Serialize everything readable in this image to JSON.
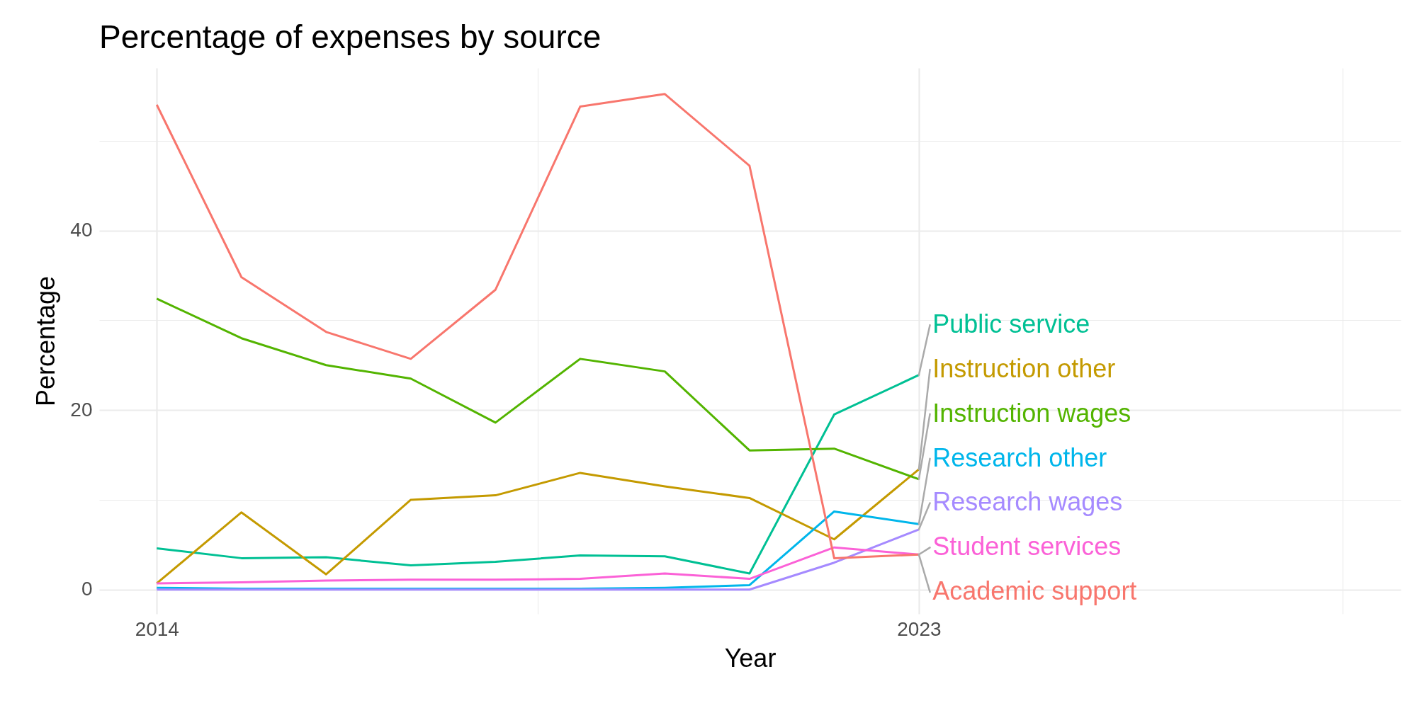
{
  "chart_data": {
    "type": "line",
    "title": "Percentage of expenses by source",
    "xlabel": "Year",
    "ylabel": "Percentage",
    "x": [
      2014,
      2015,
      2016,
      2017,
      2018,
      2019,
      2020,
      2021,
      2022,
      2023
    ],
    "xlim": [
      2013.32,
      2028.69
    ],
    "xticks": [
      2014,
      {
        "value": 2018.5,
        "label": null
      },
      2023,
      {
        "value": 2028,
        "label": null
      }
    ],
    "ylim": [
      -2.7,
      58.1
    ],
    "yticks": [
      0,
      {
        "value": 10,
        "label": null
      },
      20,
      {
        "value": 30,
        "label": null
      },
      40,
      {
        "value": 50,
        "label": null
      }
    ],
    "grid": true,
    "legend": false,
    "line_style": "solid",
    "marker": "none",
    "series": [
      {
        "name": "Public service",
        "color": "#00c094",
        "values": [
          4.6,
          3.5,
          3.6,
          2.7,
          3.1,
          3.8,
          3.7,
          1.8,
          19.5,
          23.9
        ]
      },
      {
        "name": "Instruction other",
        "color": "#c49a00",
        "values": [
          0.7,
          8.6,
          1.7,
          10.0,
          10.5,
          13.0,
          11.5,
          10.2,
          5.6,
          13.4
        ]
      },
      {
        "name": "Instruction wages",
        "color": "#53b400",
        "values": [
          32.4,
          28.0,
          25.0,
          23.5,
          18.6,
          25.7,
          24.3,
          15.5,
          15.7,
          12.3
        ]
      },
      {
        "name": "Research other",
        "color": "#00b6eb",
        "values": [
          0.2,
          0.1,
          0.1,
          0.1,
          0.1,
          0.1,
          0.2,
          0.5,
          8.7,
          7.3
        ]
      },
      {
        "name": "Research wages",
        "color": "#a58aff",
        "values": [
          0.0,
          0.0,
          0.0,
          0.0,
          0.0,
          0.0,
          0.0,
          0.0,
          3.0,
          6.7
        ]
      },
      {
        "name": "Student services",
        "color": "#fb61d7",
        "values": [
          0.7,
          0.8,
          1.0,
          1.1,
          1.1,
          1.2,
          1.8,
          1.2,
          4.7,
          3.9
        ]
      },
      {
        "name": "Academic support",
        "color": "#f8766d",
        "values": [
          54.0,
          34.8,
          28.7,
          25.7,
          33.4,
          53.8,
          55.2,
          47.2,
          3.5,
          3.9
        ]
      }
    ]
  }
}
